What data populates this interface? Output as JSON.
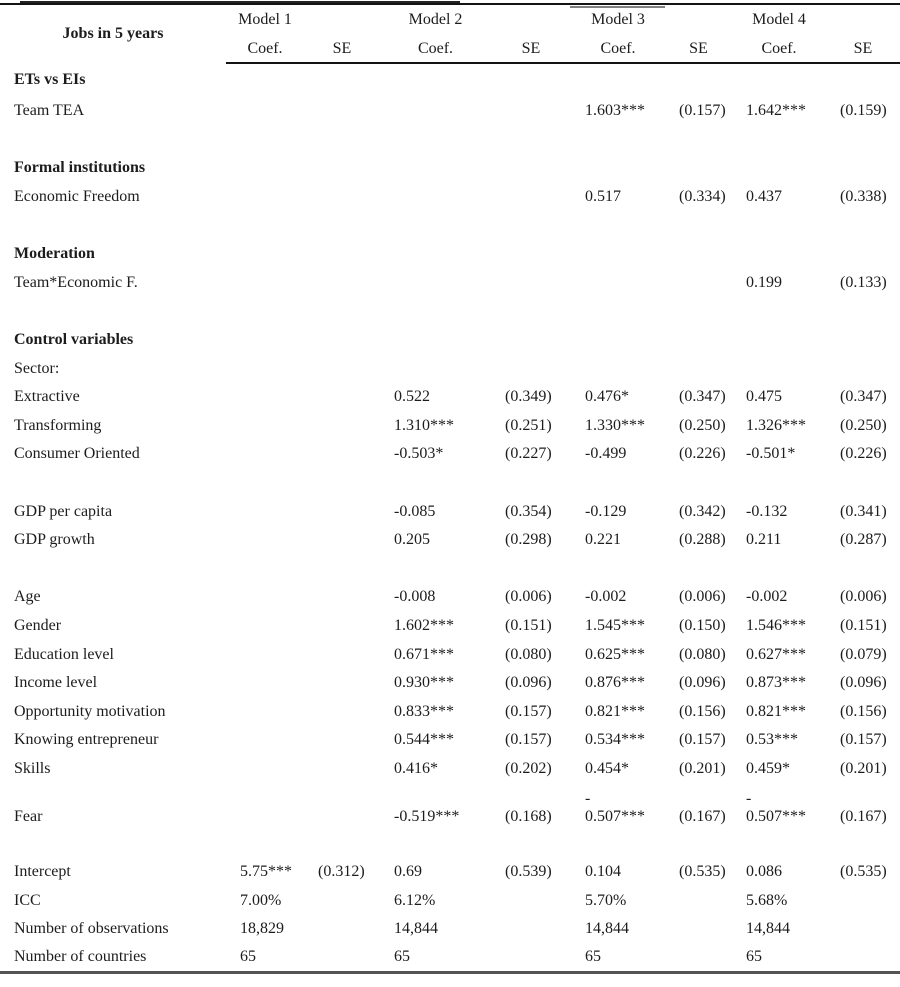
{
  "page": {
    "background": "#ffffff",
    "text_color": "#1c1c1c",
    "rule_color": "#141414",
    "bottom_rule_color": "#545454"
  },
  "table": {
    "title": "Jobs in 5 years",
    "models": [
      "Model 1",
      "Model 2",
      "Model 3",
      "Model 4"
    ],
    "subheaders": {
      "coef": "Coef.",
      "se": "SE"
    },
    "rows": [
      {
        "type": "section",
        "label": "ETs vs EIs"
      },
      {
        "type": "data",
        "label": "Team TEA",
        "cells": [
          "",
          "",
          "",
          "",
          "1.603***",
          "(0.157)",
          "1.642***",
          "(0.159)"
        ]
      },
      {
        "type": "blank"
      },
      {
        "type": "section",
        "label": "Formal institutions"
      },
      {
        "type": "data",
        "label": "Economic Freedom",
        "cells": [
          "",
          "",
          "",
          "",
          "0.517",
          "(0.334)",
          "0.437",
          "(0.338)"
        ]
      },
      {
        "type": "blank"
      },
      {
        "type": "section",
        "label": "Moderation"
      },
      {
        "type": "data",
        "label": "Team*Economic F.",
        "cells": [
          "",
          "",
          "",
          "",
          "",
          "",
          "0.199",
          "(0.133)"
        ]
      },
      {
        "type": "blank"
      },
      {
        "type": "section",
        "label": "Control variables"
      },
      {
        "type": "data",
        "label": "Sector:",
        "cells": [
          "",
          "",
          "",
          "",
          "",
          "",
          "",
          ""
        ]
      },
      {
        "type": "data",
        "label": "Extractive",
        "cells": [
          "",
          "",
          "0.522",
          "(0.349)",
          "0.476*",
          "(0.347)",
          "0.475",
          "(0.347)"
        ]
      },
      {
        "type": "data",
        "label": "Transforming",
        "cells": [
          "",
          "",
          "1.310***",
          "(0.251)",
          "1.330***",
          "(0.250)",
          "1.326***",
          "(0.250)"
        ]
      },
      {
        "type": "data",
        "label": "Consumer Oriented",
        "cells": [
          "",
          "",
          "-0.503*",
          "(0.227)",
          "-0.499",
          "(0.226)",
          "-0.501*",
          "(0.226)"
        ]
      },
      {
        "type": "blank"
      },
      {
        "type": "data",
        "label": "GDP per capita",
        "cells": [
          "",
          "",
          "-0.085",
          "(0.354)",
          "-0.129",
          "(0.342)",
          "-0.132",
          "(0.341)"
        ]
      },
      {
        "type": "data",
        "label": "GDP growth",
        "cells": [
          "",
          "",
          "0.205",
          "(0.298)",
          "0.221",
          "(0.288)",
          "0.211",
          "(0.287)"
        ]
      },
      {
        "type": "blank"
      },
      {
        "type": "data",
        "label": "Age",
        "cells": [
          "",
          "",
          "-0.008",
          "(0.006)",
          "-0.002",
          "(0.006)",
          "-0.002",
          "(0.006)"
        ]
      },
      {
        "type": "data",
        "label": "Gender",
        "cells": [
          "",
          "",
          "1.602***",
          "(0.151)",
          "1.545***",
          "(0.150)",
          "1.546***",
          "(0.151)"
        ]
      },
      {
        "type": "data",
        "label": "Education level",
        "cells": [
          "",
          "",
          "0.671***",
          "(0.080)",
          "0.625***",
          "(0.080)",
          "0.627***",
          "(0.079)"
        ]
      },
      {
        "type": "data",
        "label": "Income level",
        "cells": [
          "",
          "",
          "0.930***",
          "(0.096)",
          "0.876***",
          "(0.096)",
          "0.873***",
          "(0.096)"
        ]
      },
      {
        "type": "data",
        "label": "Opportunity motivation",
        "cells": [
          "",
          "",
          "0.833***",
          "(0.157)",
          "0.821***",
          "(0.156)",
          "0.821***",
          "(0.156)"
        ]
      },
      {
        "type": "data",
        "label": "Knowing entrepreneur",
        "cells": [
          "",
          "",
          "0.544***",
          "(0.157)",
          "0.534***",
          "(0.157)",
          "0.53***",
          "(0.157)"
        ]
      },
      {
        "type": "data",
        "label": "Skills",
        "cells": [
          "",
          "",
          "0.416*",
          "(0.202)",
          "0.454*",
          "(0.201)",
          "0.459*",
          "(0.201)"
        ]
      },
      {
        "type": "data",
        "label": "Fear",
        "tall": true,
        "cells": [
          "",
          "",
          "-0.519***",
          "(0.168)",
          "-\n0.507***",
          "(0.167)",
          "-\n0.507***",
          "(0.167)"
        ]
      },
      {
        "type": "blank"
      },
      {
        "type": "data",
        "label": "Intercept",
        "cells": [
          "5.75***",
          "(0.312)",
          "0.69",
          "(0.539)",
          "0.104",
          "(0.535)",
          "0.086",
          "(0.535)"
        ]
      },
      {
        "type": "data",
        "label": "ICC",
        "cells": [
          "7.00%",
          "",
          "6.12%",
          "",
          "5.70%",
          "",
          "5.68%",
          ""
        ]
      },
      {
        "type": "data",
        "label": "Number of observations",
        "cells": [
          "18,829",
          "",
          "14,844",
          "",
          "14,844",
          "",
          "14,844",
          ""
        ]
      },
      {
        "type": "data",
        "label": "Number of countries",
        "cells": [
          "65",
          "",
          "65",
          "",
          "65",
          "",
          "65",
          ""
        ]
      }
    ]
  }
}
